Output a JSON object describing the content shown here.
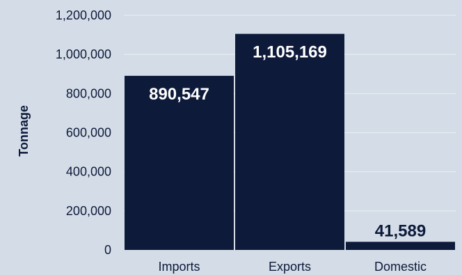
{
  "chart_data": {
    "type": "bar",
    "categories": [
      "Imports",
      "Exports",
      "Domestic"
    ],
    "values": [
      890547,
      1105169,
      41589
    ],
    "value_labels": [
      "890,547",
      "1,105,169",
      "41,589"
    ],
    "ylabel": "Tonnage",
    "xlabel": "",
    "title": "",
    "ylim": [
      0,
      1200000
    ],
    "yticks": [
      0,
      200000,
      400000,
      600000,
      800000,
      1000000,
      1200000
    ],
    "ytick_labels": [
      "0",
      "200,000",
      "400,000",
      "600,000",
      "800,000",
      "1,000,000",
      "1,200,000"
    ],
    "grid": true,
    "colors": {
      "background": "#d4dde7",
      "bar": "#0d1a3a",
      "label_on_bar": "#ffffff",
      "label_above_bar": "#0d1a3a",
      "gridline": "#e9eef4"
    }
  }
}
